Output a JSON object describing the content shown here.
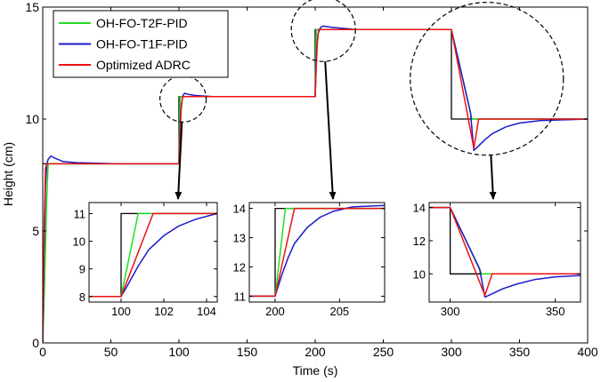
{
  "chart_data": {
    "type": "line",
    "title": "",
    "xlabel": "Time (s)",
    "ylabel": "Height (cm)",
    "xlim": [
      0,
      400
    ],
    "ylim": [
      0,
      15
    ],
    "xticks": [
      "0",
      "50",
      "100",
      "150",
      "200",
      "250",
      "300",
      "350",
      "400"
    ],
    "yticks": [
      "0",
      "5",
      "10",
      "15"
    ],
    "grid": false,
    "legend_position": "top-left",
    "colors": {
      "reference": "#000000",
      "OH-FO-T2F-PID": "#22dd22",
      "OH-FO-T1F-PID": "#1a1acc",
      "Optimized ADRC": "#ee1111"
    },
    "series": [
      {
        "name": "OH-FO-T2F-PID",
        "points": [
          [
            0,
            0
          ],
          [
            1.5,
            3
          ],
          [
            3,
            6.5
          ],
          [
            4,
            8
          ],
          [
            100,
            8
          ],
          [
            100.8,
            11
          ],
          [
            200,
            11
          ],
          [
            200.8,
            14
          ],
          [
            300,
            14
          ],
          [
            315,
            10
          ],
          [
            322,
            10
          ],
          [
            400,
            10
          ]
        ]
      },
      {
        "name": "OH-FO-T1F-PID",
        "points": [
          [
            0,
            0
          ],
          [
            1,
            4
          ],
          [
            2,
            7
          ],
          [
            3,
            8
          ],
          [
            4,
            8.2
          ],
          [
            6,
            8.35
          ],
          [
            9,
            8.25
          ],
          [
            15,
            8.1
          ],
          [
            25,
            8.05
          ],
          [
            55,
            8
          ],
          [
            100,
            8
          ],
          [
            100.5,
            9
          ],
          [
            101,
            10
          ],
          [
            101.8,
            10.7
          ],
          [
            103,
            11.05
          ],
          [
            104,
            11.15
          ],
          [
            107,
            11.1
          ],
          [
            112,
            11.05
          ],
          [
            125,
            11
          ],
          [
            200,
            11
          ],
          [
            200.5,
            12
          ],
          [
            201,
            13
          ],
          [
            202,
            13.8
          ],
          [
            204,
            14.1
          ],
          [
            206,
            14.15
          ],
          [
            212,
            14.1
          ],
          [
            230,
            14
          ],
          [
            300,
            14
          ],
          [
            314,
            10.3
          ],
          [
            316.5,
            8.6
          ],
          [
            320,
            8.8
          ],
          [
            325,
            9.1
          ],
          [
            330,
            9.35
          ],
          [
            340,
            9.65
          ],
          [
            350,
            9.82
          ],
          [
            365,
            9.93
          ],
          [
            400,
            10
          ]
        ]
      },
      {
        "name": "Optimized ADRC",
        "points": [
          [
            0,
            0
          ],
          [
            1,
            5
          ],
          [
            2,
            7.8
          ],
          [
            3,
            8
          ],
          [
            100,
            8
          ],
          [
            100.5,
            8.8
          ],
          [
            101.5,
            10.3
          ],
          [
            102.5,
            11
          ],
          [
            200,
            11
          ],
          [
            200.5,
            11.9
          ],
          [
            201.5,
            13.3
          ],
          [
            202.5,
            14
          ],
          [
            300,
            14
          ],
          [
            316.5,
            8.7
          ],
          [
            320,
            10
          ],
          [
            400,
            10
          ]
        ]
      },
      {
        "name": "reference",
        "points": [
          [
            0,
            8
          ],
          [
            100,
            8
          ],
          [
            100,
            11
          ],
          [
            200,
            11
          ],
          [
            200,
            14
          ],
          [
            300,
            14
          ],
          [
            300,
            10
          ],
          [
            400,
            10
          ]
        ]
      }
    ],
    "insets": [
      {
        "xlim": [
          98.5,
          104.5
        ],
        "ylim": [
          7.8,
          11.4
        ],
        "xticks": [
          "100",
          "102",
          "104"
        ],
        "yticks": [
          "8",
          "9",
          "10",
          "11"
        ],
        "series": [
          {
            "name": "reference",
            "points": [
              [
                98.5,
                8
              ],
              [
                100,
                8
              ],
              [
                100,
                11
              ],
              [
                104.5,
                11
              ]
            ]
          },
          {
            "name": "OH-FO-T2F-PID",
            "points": [
              [
                98.5,
                8
              ],
              [
                100,
                8
              ],
              [
                100.8,
                11
              ],
              [
                104.5,
                11
              ]
            ]
          },
          {
            "name": "OH-FO-T1F-PID",
            "points": [
              [
                98.5,
                8
              ],
              [
                100,
                8
              ],
              [
                100.3,
                8.4
              ],
              [
                100.8,
                9.1
              ],
              [
                101.3,
                9.7
              ],
              [
                102,
                10.2
              ],
              [
                102.7,
                10.55
              ],
              [
                103.5,
                10.8
              ],
              [
                104.5,
                11
              ]
            ]
          },
          {
            "name": "Optimized ADRC",
            "points": [
              [
                98.5,
                8
              ],
              [
                100,
                8
              ],
              [
                101.5,
                11
              ],
              [
                104.5,
                11
              ]
            ]
          }
        ]
      },
      {
        "xlim": [
          198,
          208.5
        ],
        "ylim": [
          10.8,
          14.2
        ],
        "xticks": [
          "200",
          "205"
        ],
        "yticks": [
          "11",
          "12",
          "13",
          "14"
        ],
        "series": [
          {
            "name": "reference",
            "points": [
              [
                198,
                11
              ],
              [
                200,
                11
              ],
              [
                200,
                14
              ],
              [
                208.5,
                14
              ]
            ]
          },
          {
            "name": "OH-FO-T2F-PID",
            "points": [
              [
                198,
                11
              ],
              [
                200,
                11
              ],
              [
                200.8,
                14
              ],
              [
                208.5,
                14
              ]
            ]
          },
          {
            "name": "OH-FO-T1F-PID",
            "points": [
              [
                198,
                11
              ],
              [
                200,
                11
              ],
              [
                200.5,
                11.7
              ],
              [
                201,
                12.3
              ],
              [
                201.5,
                12.8
              ],
              [
                202.5,
                13.35
              ],
              [
                203.5,
                13.7
              ],
              [
                204.5,
                13.9
              ],
              [
                206,
                14.05
              ],
              [
                208.5,
                14.1
              ]
            ]
          },
          {
            "name": "Optimized ADRC",
            "points": [
              [
                198,
                11
              ],
              [
                200,
                11
              ],
              [
                201.5,
                14
              ],
              [
                208.5,
                14
              ]
            ]
          }
        ]
      },
      {
        "xlim": [
          290,
          362
        ],
        "ylim": [
          8.3,
          14.3
        ],
        "xticks": [
          "300",
          "350"
        ],
        "yticks": [
          "10",
          "12",
          "14"
        ],
        "series": [
          {
            "name": "reference",
            "points": [
              [
                290,
                14
              ],
              [
                300,
                14
              ],
              [
                300,
                10
              ],
              [
                362,
                10
              ]
            ]
          },
          {
            "name": "OH-FO-T2F-PID",
            "points": [
              [
                290,
                14
              ],
              [
                300,
                14
              ],
              [
                315,
                10
              ],
              [
                322,
                10
              ],
              [
                362,
                10
              ]
            ]
          },
          {
            "name": "OH-FO-T1F-PID",
            "points": [
              [
                290,
                14
              ],
              [
                300,
                14
              ],
              [
                314,
                10.3
              ],
              [
                316.5,
                8.6
              ],
              [
                320,
                8.8
              ],
              [
                325,
                9.1
              ],
              [
                332,
                9.4
              ],
              [
                340,
                9.65
              ],
              [
                350,
                9.82
              ],
              [
                362,
                9.9
              ]
            ]
          },
          {
            "name": "Optimized ADRC",
            "points": [
              [
                290,
                14
              ],
              [
                300,
                14
              ],
              [
                316.5,
                8.7
              ],
              [
                320,
                10
              ],
              [
                362,
                10
              ]
            ]
          }
        ]
      }
    ]
  }
}
